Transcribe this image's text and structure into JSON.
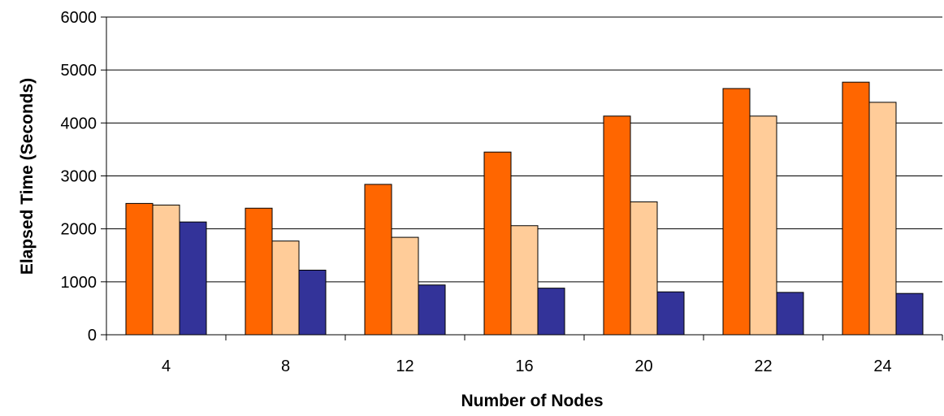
{
  "chart_data": {
    "type": "bar",
    "title": "",
    "xlabel": "Number of Nodes",
    "ylabel": "Elapsed Time (Seconds)",
    "categories": [
      "4",
      "8",
      "12",
      "16",
      "20",
      "22",
      "24"
    ],
    "ylim": [
      0,
      6000
    ],
    "yticks": [
      0,
      1000,
      2000,
      3000,
      4000,
      5000,
      6000
    ],
    "grid": true,
    "legend": "none",
    "series": [
      {
        "values": [
          2480,
          2390,
          2840,
          3450,
          4130,
          4650,
          4770
        ],
        "color": "#FF6600"
      },
      {
        "values": [
          2450,
          1770,
          1840,
          2060,
          2510,
          4130,
          4390
        ],
        "color": "#FFCC99"
      },
      {
        "values": [
          2130,
          1220,
          940,
          880,
          810,
          800,
          780
        ],
        "color": "#333399"
      }
    ]
  }
}
